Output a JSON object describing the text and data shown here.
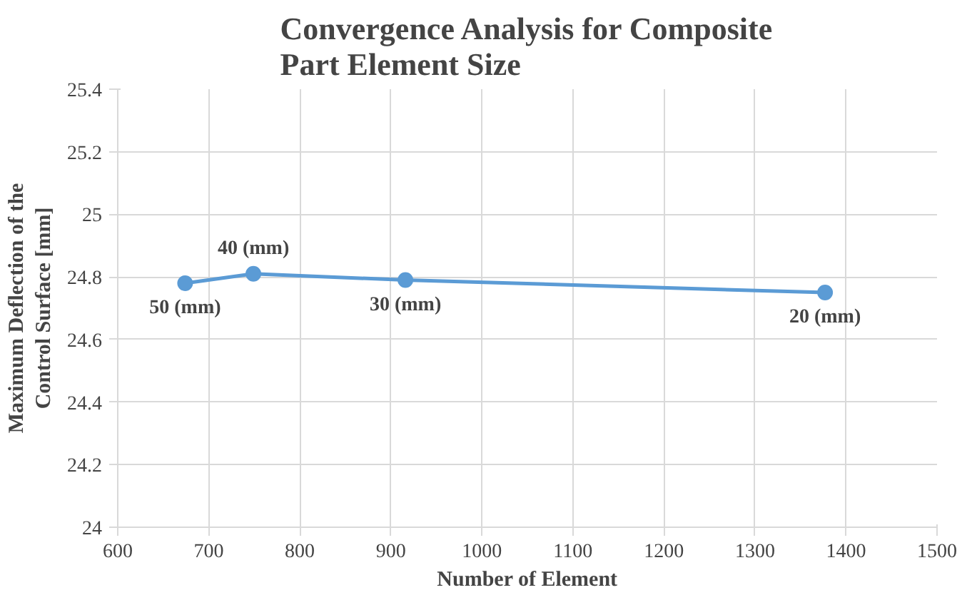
{
  "chart_data": {
    "type": "line",
    "title": "Convergence Analysis for Composite Part Element Size",
    "xlabel": "Number of Element",
    "ylabel": "Maximum Deflection of the Control Surface [mm]",
    "x": [
      674,
      749,
      916,
      1377
    ],
    "series": [
      {
        "color": "#5b9bd5",
        "values": [
          24.78,
          24.81,
          24.79,
          24.75
        ]
      }
    ],
    "xlim": [
      600,
      1500
    ],
    "xticks": [
      600,
      700,
      800,
      900,
      1000,
      1100,
      1200,
      1300,
      1400,
      1500
    ],
    "ylim": [
      24,
      25.4
    ],
    "yticks": [
      24,
      24.2,
      24.4,
      24.6,
      24.8,
      25,
      25.2,
      25.4
    ],
    "grid": true,
    "marker": "circle",
    "line_style": "solid",
    "annotations": [
      {
        "text": "50 (mm)",
        "x": 674,
        "y": 24.78
      },
      {
        "text": "40 (mm)",
        "x": 749,
        "y": 24.81
      },
      {
        "text": "30 (mm)",
        "x": 916,
        "y": 24.79
      },
      {
        "text": "20 (mm)",
        "x": 1377,
        "y": 24.75
      }
    ]
  }
}
